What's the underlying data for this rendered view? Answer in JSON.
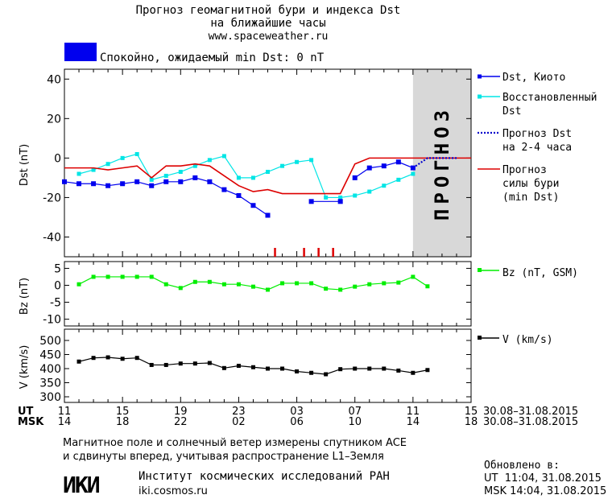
{
  "header": {
    "title_line1": "Прогноз геомагнитной бури и индекса Dst",
    "title_line2": "на ближайшие часы",
    "site": "www.spaceweather.ru",
    "status_text": "Спокойно, ожидаемый min Dst: 0 nT",
    "status_color": "#0000ee"
  },
  "forecast_label": "ПРОГНОЗ",
  "colors": {
    "dst_kyoto": "#0000ee",
    "dst_restored": "#00e5e5",
    "dst_forecast": "#0000cc",
    "storm_forecast": "#dd0000",
    "bz": "#00ee00",
    "v": "#000000",
    "forecast_zone": "#d8d8d8"
  },
  "chart_data": [
    {
      "type": "line",
      "ylabel": "Dst (nT)",
      "ylim": [
        -50,
        45
      ],
      "yticks": [
        40,
        20,
        0,
        -20,
        -40
      ],
      "xlim": [
        0,
        28
      ],
      "forecast_start": 24,
      "series": [
        {
          "name": "Dst, Киото",
          "key": "kyoto",
          "x": [
            0,
            1,
            2,
            3,
            4,
            5,
            6,
            7,
            8,
            9,
            10,
            11,
            12,
            13,
            14,
            15,
            17,
            19
          ],
          "y": [
            -12,
            -13,
            -13,
            -14,
            -13,
            -12,
            -14,
            -12,
            -12,
            -10,
            -12,
            -16,
            -19,
            -24,
            -29,
            null,
            -22,
            -22
          ]
        },
        {
          "name": "Dst, Киото (прод.)",
          "key": "kyoto2",
          "x": [
            20,
            21,
            22,
            23,
            24
          ],
          "y": [
            -10,
            -5,
            -4,
            -2,
            -5
          ]
        },
        {
          "name": "Восстановленный Dst",
          "key": "restored",
          "x": [
            1,
            2,
            3,
            4,
            5,
            6,
            7,
            8,
            9,
            10,
            11,
            12,
            13,
            14,
            15,
            16,
            17,
            18,
            19,
            20,
            21,
            22,
            23,
            24
          ],
          "y": [
            -8,
            -6,
            -3,
            0,
            2,
            -11,
            -9,
            -7,
            -4,
            -1,
            1,
            -10,
            -10,
            -7,
            -4,
            -2,
            -1,
            -20,
            -20,
            -19,
            -17,
            -14,
            -11,
            -8
          ]
        },
        {
          "name": "Прогноз Dst на 2-4 часа",
          "key": "forecast",
          "x": [
            24,
            25,
            26,
            27
          ],
          "y": [
            -5,
            0,
            0,
            0
          ]
        },
        {
          "name": "Прогноз силы бури (min Dst)",
          "key": "storm",
          "x": [
            0,
            1,
            2,
            3,
            4,
            5,
            6,
            7,
            8,
            9,
            10,
            11,
            12,
            13,
            14,
            15,
            16,
            17,
            18,
            19,
            20,
            21,
            22,
            23,
            24,
            28
          ],
          "y": [
            -5,
            -5,
            -5,
            -6,
            -5,
            -4,
            -10,
            -4,
            -4,
            -3,
            -4,
            -9,
            -14,
            -17,
            -16,
            -18,
            -18,
            -18,
            -18,
            -18,
            -3,
            0,
            0,
            0,
            0,
            0
          ]
        }
      ],
      "storm_markers_x": [
        14.5,
        16.5,
        17.5,
        18.5
      ],
      "legend": [
        {
          "key": "kyoto",
          "lines": [
            "Dst, Киото"
          ]
        },
        {
          "key": "restored",
          "lines": [
            "Восстановленный",
            "Dst"
          ]
        },
        {
          "key": "forecast",
          "lines": [
            "Прогноз Dst",
            "на 2-4 часа"
          ]
        },
        {
          "key": "storm",
          "lines": [
            "Прогноз",
            "силы бури",
            "(min Dst)"
          ]
        }
      ]
    },
    {
      "type": "line",
      "ylabel": "Bz (nT)",
      "ylim": [
        -12,
        7
      ],
      "yticks": [
        5,
        0,
        -5,
        -10
      ],
      "xlim": [
        0,
        28
      ],
      "series": [
        {
          "name": "Bz (nT, GSM)",
          "key": "bz",
          "x": [
            1,
            2,
            3,
            4,
            5,
            6,
            7,
            8,
            9,
            10,
            11,
            12,
            13,
            14,
            15,
            16,
            17,
            18,
            19,
            20,
            21,
            22,
            23,
            24,
            25
          ],
          "y": [
            0.3,
            2.5,
            2.5,
            2.5,
            2.5,
            2.5,
            0.3,
            -0.8,
            1,
            1,
            0.3,
            0.3,
            -0.4,
            -1.3,
            0.6,
            0.6,
            0.6,
            -1,
            -1.3,
            -0.4,
            0.3,
            0.6,
            0.8,
            2.5,
            -0.3
          ]
        }
      ]
    },
    {
      "type": "line",
      "ylabel": "V (km/s)",
      "ylim": [
        280,
        540
      ],
      "yticks": [
        500,
        450,
        400,
        350,
        300
      ],
      "xlim": [
        0,
        28
      ],
      "series": [
        {
          "name": "V (km/s)",
          "key": "v",
          "x": [
            1,
            2,
            3,
            4,
            5,
            6,
            7,
            8,
            9,
            10,
            11,
            12,
            13,
            14,
            15,
            16,
            17,
            18,
            19,
            20,
            21,
            22,
            23,
            24,
            25
          ],
          "y": [
            425,
            438,
            440,
            435,
            438,
            413,
            413,
            418,
            418,
            420,
            402,
            410,
            405,
            400,
            400,
            390,
            385,
            380,
            398,
            400,
            400,
            400,
            393,
            385,
            395
          ]
        }
      ]
    }
  ],
  "xaxis": {
    "ut_label": "UT",
    "msk_label": "MSK",
    "ut_ticks": [
      "11",
      "15",
      "19",
      "23",
      "03",
      "07",
      "11",
      "15"
    ],
    "msk_ticks": [
      "14",
      "18",
      "22",
      "02",
      "06",
      "10",
      "14",
      "18"
    ],
    "date_range_ut": "30.08–31.08.2015",
    "date_range_msk": "30.08–31.08.2015"
  },
  "footer": {
    "note_line1": "Магнитное поле и солнечный ветер измерены спутником ACE",
    "note_line2": "и сдвинуты вперед, учитывая распространение L1–Земля",
    "logo": "ИКИ",
    "institute": "Институт космических исследований РАН",
    "institute_url": "iki.cosmos.ru",
    "updated_label": "Обновлено в:",
    "updated_ut": "UT  11:04, 31.08.2015",
    "updated_msk": "MSK 14:04, 31.08.2015"
  }
}
